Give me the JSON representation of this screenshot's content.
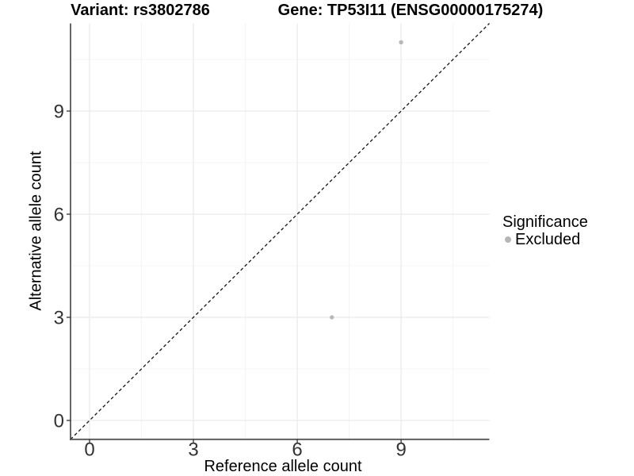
{
  "chart_data": {
    "type": "scatter",
    "title_left": "Variant: rs3802786",
    "title_right": "Gene: TP53I11 (ENSG00000175274)",
    "xlabel": "Reference allele count",
    "ylabel": "Alternative allele count",
    "xlim": [
      -0.55,
      11.55
    ],
    "ylim": [
      -0.55,
      11.55
    ],
    "x_ticks": [
      0,
      3,
      6,
      9
    ],
    "y_ticks": [
      0,
      3,
      6,
      9
    ],
    "x_tick_labels": [
      "0",
      "3",
      "6",
      "9"
    ],
    "y_tick_labels": [
      "0",
      "3",
      "6",
      "9"
    ],
    "x_minor_ticks": [
      1.5,
      4.5,
      7.5,
      10.5
    ],
    "y_minor_ticks": [
      1.5,
      4.5,
      7.5,
      10.5
    ],
    "grid": true,
    "points": [
      {
        "x": 9,
        "y": 11,
        "series": "Excluded"
      },
      {
        "x": 7,
        "y": 3,
        "series": "Excluded"
      }
    ],
    "reference_line": {
      "type": "identity",
      "style": "dashed",
      "color": "#141414"
    },
    "legend": {
      "title": "Significance",
      "position": "right",
      "entries": [
        {
          "label": "Excluded",
          "marker": "circle",
          "color": "#b5b5b5"
        }
      ]
    },
    "colors": {
      "point": "#b8b8b8",
      "grid_major": "#e9e9e9",
      "grid_minor": "#f4f4f4",
      "axis_line": "#555555",
      "tick_mark": "#333333",
      "tick_label": "#333333"
    }
  }
}
